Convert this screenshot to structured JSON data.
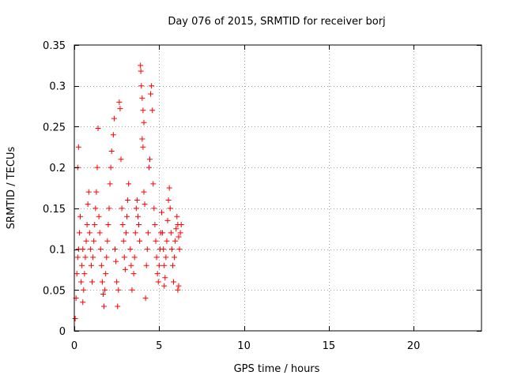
{
  "chart_data": {
    "type": "scatter",
    "title": "Day 076 of 2015, SRMTID for receiver borj",
    "xlabel": "GPS time / hours",
    "ylabel": "SRMTID / TECUs",
    "xlim": [
      0,
      24
    ],
    "ylim": [
      0,
      0.35
    ],
    "xticks": [
      0,
      5,
      10,
      15,
      20
    ],
    "xtick_labels": [
      "0",
      "5",
      "10",
      "15",
      "20"
    ],
    "yticks": [
      0,
      0.05,
      0.1,
      0.15,
      0.2,
      0.25,
      0.3,
      0.35
    ],
    "ytick_labels": [
      "0",
      "0.05",
      "0.1",
      "0.15",
      "0.2",
      "0.25",
      "0.3",
      "0.35"
    ],
    "grid": true,
    "marker": "+",
    "series": [
      {
        "name": "SRMTID",
        "color": "#ff0000",
        "points": [
          [
            0.05,
            0.015
          ],
          [
            0.1,
            0.04
          ],
          [
            0.15,
            0.07
          ],
          [
            0.2,
            0.09
          ],
          [
            0.25,
            0.1
          ],
          [
            0.3,
            0.12
          ],
          [
            0.35,
            0.14
          ],
          [
            0.2,
            0.2
          ],
          [
            0.25,
            0.225
          ],
          [
            0.4,
            0.06
          ],
          [
            0.45,
            0.08
          ],
          [
            0.5,
            0.1
          ],
          [
            0.5,
            0.035
          ],
          [
            0.55,
            0.05
          ],
          [
            0.6,
            0.07
          ],
          [
            0.65,
            0.09
          ],
          [
            0.7,
            0.11
          ],
          [
            0.75,
            0.13
          ],
          [
            0.8,
            0.155
          ],
          [
            0.85,
            0.17
          ],
          [
            0.9,
            0.12
          ],
          [
            0.95,
            0.1
          ],
          [
            1.0,
            0.08
          ],
          [
            1.05,
            0.06
          ],
          [
            1.1,
            0.09
          ],
          [
            1.15,
            0.11
          ],
          [
            1.2,
            0.13
          ],
          [
            1.25,
            0.15
          ],
          [
            1.3,
            0.17
          ],
          [
            1.35,
            0.2
          ],
          [
            1.4,
            0.248
          ],
          [
            1.45,
            0.14
          ],
          [
            1.5,
            0.12
          ],
          [
            1.55,
            0.1
          ],
          [
            1.6,
            0.08
          ],
          [
            1.65,
            0.06
          ],
          [
            1.7,
            0.045
          ],
          [
            1.75,
            0.03
          ],
          [
            1.8,
            0.05
          ],
          [
            1.85,
            0.07
          ],
          [
            1.9,
            0.09
          ],
          [
            1.95,
            0.11
          ],
          [
            2.0,
            0.13
          ],
          [
            2.05,
            0.15
          ],
          [
            2.1,
            0.18
          ],
          [
            2.15,
            0.2
          ],
          [
            2.2,
            0.22
          ],
          [
            2.3,
            0.24
          ],
          [
            2.35,
            0.26
          ],
          [
            2.4,
            0.1
          ],
          [
            2.45,
            0.085
          ],
          [
            2.5,
            0.06
          ],
          [
            2.55,
            0.03
          ],
          [
            2.6,
            0.05
          ],
          [
            2.65,
            0.28
          ],
          [
            2.7,
            0.272
          ],
          [
            2.75,
            0.21
          ],
          [
            2.8,
            0.15
          ],
          [
            2.85,
            0.13
          ],
          [
            2.9,
            0.11
          ],
          [
            2.95,
            0.09
          ],
          [
            3.0,
            0.075
          ],
          [
            3.05,
            0.12
          ],
          [
            3.1,
            0.14
          ],
          [
            3.15,
            0.16
          ],
          [
            3.2,
            0.18
          ],
          [
            3.3,
            0.1
          ],
          [
            3.35,
            0.08
          ],
          [
            3.4,
            0.05
          ],
          [
            3.5,
            0.07
          ],
          [
            3.55,
            0.09
          ],
          [
            3.6,
            0.12
          ],
          [
            3.65,
            0.15
          ],
          [
            3.7,
            0.16
          ],
          [
            3.75,
            0.14
          ],
          [
            3.8,
            0.13
          ],
          [
            3.85,
            0.11
          ],
          [
            3.9,
            0.325
          ],
          [
            3.92,
            0.318
          ],
          [
            3.95,
            0.3
          ],
          [
            4.0,
            0.285
          ],
          [
            4.05,
            0.27
          ],
          [
            4.1,
            0.255
          ],
          [
            4.0,
            0.235
          ],
          [
            4.05,
            0.225
          ],
          [
            4.1,
            0.17
          ],
          [
            4.15,
            0.155
          ],
          [
            4.2,
            0.04
          ],
          [
            4.25,
            0.08
          ],
          [
            4.3,
            0.1
          ],
          [
            4.35,
            0.12
          ],
          [
            4.4,
            0.2
          ],
          [
            4.45,
            0.21
          ],
          [
            4.5,
            0.29
          ],
          [
            4.55,
            0.3
          ],
          [
            4.6,
            0.27
          ],
          [
            4.65,
            0.18
          ],
          [
            4.7,
            0.15
          ],
          [
            4.75,
            0.13
          ],
          [
            4.8,
            0.11
          ],
          [
            4.85,
            0.09
          ],
          [
            4.9,
            0.07
          ],
          [
            4.95,
            0.06
          ],
          [
            5.0,
            0.08
          ],
          [
            5.05,
            0.1
          ],
          [
            5.1,
            0.12
          ],
          [
            5.15,
            0.145
          ],
          [
            5.2,
            0.12
          ],
          [
            5.25,
            0.1
          ],
          [
            5.3,
            0.08
          ],
          [
            5.35,
            0.065
          ],
          [
            5.4,
            0.09
          ],
          [
            5.45,
            0.11
          ],
          [
            5.5,
            0.135
          ],
          [
            5.55,
            0.16
          ],
          [
            5.6,
            0.175
          ],
          [
            5.65,
            0.15
          ],
          [
            5.7,
            0.12
          ],
          [
            5.75,
            0.1
          ],
          [
            5.8,
            0.08
          ],
          [
            5.85,
            0.06
          ],
          [
            5.9,
            0.09
          ],
          [
            5.95,
            0.11
          ],
          [
            6.0,
            0.125
          ],
          [
            6.05,
            0.14
          ],
          [
            6.1,
            0.13
          ],
          [
            6.15,
            0.115
          ],
          [
            6.2,
            0.1
          ],
          [
            6.25,
            0.12
          ],
          [
            6.3,
            0.13
          ],
          [
            6.1,
            0.05
          ],
          [
            6.15,
            0.055
          ],
          [
            5.3,
            0.055
          ]
        ]
      }
    ]
  }
}
